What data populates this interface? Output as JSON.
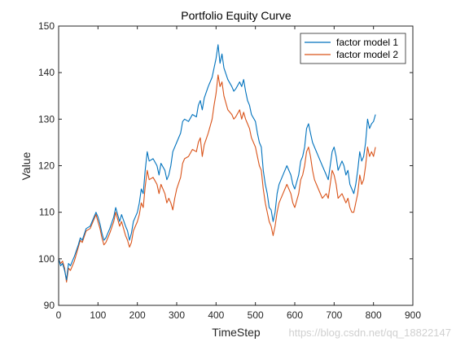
{
  "chart_data": {
    "type": "line",
    "title": "Portfolio Equity Curve",
    "xlabel": "TimeStep",
    "ylabel": "Value",
    "xlim": [
      0,
      900
    ],
    "ylim": [
      90,
      150
    ],
    "xticks": [
      0,
      100,
      200,
      300,
      400,
      500,
      600,
      700,
      800,
      900
    ],
    "yticks": [
      90,
      100,
      110,
      120,
      130,
      140,
      150
    ],
    "grid": false,
    "legend_position": "top-right",
    "series": [
      {
        "name": "factor model 1",
        "color": "#0072bd",
        "points": [
          [
            0,
            100
          ],
          [
            5,
            98.5
          ],
          [
            10,
            99
          ],
          [
            15,
            97.5
          ],
          [
            20,
            95.5
          ],
          [
            25,
            99
          ],
          [
            30,
            98.5
          ],
          [
            40,
            100.5
          ],
          [
            50,
            103
          ],
          [
            55,
            104.5
          ],
          [
            60,
            104
          ],
          [
            70,
            106.5
          ],
          [
            80,
            107
          ],
          [
            90,
            109
          ],
          [
            95,
            110
          ],
          [
            100,
            109
          ],
          [
            105,
            107.5
          ],
          [
            110,
            105.5
          ],
          [
            115,
            104
          ],
          [
            120,
            104.5
          ],
          [
            130,
            106.5
          ],
          [
            140,
            109
          ],
          [
            145,
            111
          ],
          [
            150,
            109.5
          ],
          [
            155,
            108
          ],
          [
            160,
            109.5
          ],
          [
            170,
            107
          ],
          [
            175,
            106
          ],
          [
            180,
            104
          ],
          [
            185,
            105.5
          ],
          [
            190,
            108
          ],
          [
            200,
            110
          ],
          [
            205,
            112
          ],
          [
            210,
            115
          ],
          [
            215,
            114
          ],
          [
            220,
            119
          ],
          [
            225,
            123
          ],
          [
            230,
            121
          ],
          [
            240,
            121.5
          ],
          [
            250,
            120
          ],
          [
            255,
            118
          ],
          [
            260,
            120.5
          ],
          [
            270,
            119
          ],
          [
            275,
            117
          ],
          [
            280,
            118
          ],
          [
            285,
            120
          ],
          [
            290,
            123
          ],
          [
            300,
            125
          ],
          [
            310,
            127
          ],
          [
            315,
            129.5
          ],
          [
            320,
            130
          ],
          [
            330,
            129.5
          ],
          [
            340,
            131
          ],
          [
            350,
            130.5
          ],
          [
            355,
            133
          ],
          [
            360,
            134
          ],
          [
            365,
            132
          ],
          [
            370,
            134.5
          ],
          [
            380,
            137
          ],
          [
            390,
            139
          ],
          [
            395,
            141
          ],
          [
            400,
            143
          ],
          [
            405,
            146
          ],
          [
            410,
            142
          ],
          [
            415,
            144
          ],
          [
            420,
            141
          ],
          [
            430,
            138.5
          ],
          [
            440,
            137
          ],
          [
            445,
            136
          ],
          [
            450,
            136.5
          ],
          [
            460,
            138
          ],
          [
            465,
            137
          ],
          [
            470,
            138.5
          ],
          [
            475,
            136
          ],
          [
            480,
            134
          ],
          [
            485,
            133
          ],
          [
            490,
            131
          ],
          [
            500,
            129.5
          ],
          [
            505,
            127
          ],
          [
            510,
            125
          ],
          [
            515,
            124
          ],
          [
            520,
            119
          ],
          [
            525,
            116
          ],
          [
            530,
            114
          ],
          [
            535,
            111
          ],
          [
            540,
            110.5
          ],
          [
            545,
            108
          ],
          [
            550,
            110
          ],
          [
            555,
            114
          ],
          [
            560,
            116
          ],
          [
            570,
            118
          ],
          [
            575,
            119
          ],
          [
            580,
            120
          ],
          [
            590,
            118
          ],
          [
            595,
            116
          ],
          [
            600,
            115
          ],
          [
            610,
            118
          ],
          [
            615,
            121
          ],
          [
            620,
            122
          ],
          [
            625,
            124
          ],
          [
            630,
            128
          ],
          [
            635,
            129
          ],
          [
            640,
            127
          ],
          [
            645,
            125
          ],
          [
            650,
            124
          ],
          [
            660,
            122
          ],
          [
            670,
            120
          ],
          [
            680,
            118
          ],
          [
            685,
            117
          ],
          [
            690,
            120
          ],
          [
            695,
            123
          ],
          [
            700,
            124
          ],
          [
            705,
            122
          ],
          [
            710,
            119
          ],
          [
            720,
            121
          ],
          [
            725,
            120
          ],
          [
            730,
            118
          ],
          [
            735,
            119
          ],
          [
            740,
            116
          ],
          [
            745,
            115
          ],
          [
            750,
            114
          ],
          [
            755,
            116
          ],
          [
            760,
            119
          ],
          [
            765,
            123
          ],
          [
            770,
            121
          ],
          [
            775,
            122
          ],
          [
            780,
            125
          ],
          [
            785,
            130
          ],
          [
            790,
            128
          ],
          [
            795,
            129
          ],
          [
            800,
            129.5
          ],
          [
            805,
            131
          ]
        ]
      },
      {
        "name": "factor model 2",
        "color": "#d95319",
        "points": [
          [
            0,
            100
          ],
          [
            5,
            99
          ],
          [
            10,
            99.5
          ],
          [
            15,
            98
          ],
          [
            20,
            95
          ],
          [
            25,
            98
          ],
          [
            30,
            97.5
          ],
          [
            40,
            99.5
          ],
          [
            50,
            102.5
          ],
          [
            55,
            104
          ],
          [
            60,
            103.5
          ],
          [
            70,
            106
          ],
          [
            80,
            106.5
          ],
          [
            90,
            108.5
          ],
          [
            95,
            109.5
          ],
          [
            100,
            108
          ],
          [
            105,
            106.5
          ],
          [
            110,
            104.5
          ],
          [
            115,
            103
          ],
          [
            120,
            103.5
          ],
          [
            130,
            105.5
          ],
          [
            140,
            108
          ],
          [
            145,
            110
          ],
          [
            150,
            108.5
          ],
          [
            155,
            107
          ],
          [
            160,
            108
          ],
          [
            170,
            105
          ],
          [
            175,
            104
          ],
          [
            180,
            102.5
          ],
          [
            185,
            103.5
          ],
          [
            190,
            106
          ],
          [
            200,
            108
          ],
          [
            205,
            109.5
          ],
          [
            210,
            112
          ],
          [
            215,
            111
          ],
          [
            220,
            115.5
          ],
          [
            225,
            119
          ],
          [
            230,
            117
          ],
          [
            240,
            117.5
          ],
          [
            250,
            116
          ],
          [
            255,
            114
          ],
          [
            260,
            116
          ],
          [
            270,
            114
          ],
          [
            275,
            112
          ],
          [
            280,
            113
          ],
          [
            285,
            112
          ],
          [
            290,
            110.5
          ],
          [
            295,
            113
          ],
          [
            300,
            115
          ],
          [
            310,
            117.5
          ],
          [
            315,
            120.5
          ],
          [
            320,
            121.5
          ],
          [
            330,
            122
          ],
          [
            340,
            123.5
          ],
          [
            350,
            123
          ],
          [
            355,
            125
          ],
          [
            360,
            126
          ],
          [
            365,
            122
          ],
          [
            370,
            124.5
          ],
          [
            380,
            127
          ],
          [
            390,
            130
          ],
          [
            395,
            133
          ],
          [
            400,
            135.5
          ],
          [
            405,
            139.5
          ],
          [
            410,
            137
          ],
          [
            415,
            138
          ],
          [
            420,
            135
          ],
          [
            430,
            132
          ],
          [
            440,
            131
          ],
          [
            445,
            130
          ],
          [
            450,
            130.5
          ],
          [
            460,
            132
          ],
          [
            465,
            130
          ],
          [
            470,
            131.5
          ],
          [
            475,
            130
          ],
          [
            480,
            129
          ],
          [
            485,
            128
          ],
          [
            490,
            126
          ],
          [
            500,
            124
          ],
          [
            505,
            122
          ],
          [
            510,
            120
          ],
          [
            515,
            119
          ],
          [
            520,
            115
          ],
          [
            525,
            112
          ],
          [
            530,
            110
          ],
          [
            535,
            108
          ],
          [
            540,
            107
          ],
          [
            545,
            105
          ],
          [
            550,
            107
          ],
          [
            555,
            110
          ],
          [
            560,
            112
          ],
          [
            570,
            114
          ],
          [
            575,
            115
          ],
          [
            580,
            116
          ],
          [
            590,
            114
          ],
          [
            595,
            112
          ],
          [
            600,
            111
          ],
          [
            610,
            114
          ],
          [
            615,
            117
          ],
          [
            620,
            118
          ],
          [
            625,
            120
          ],
          [
            630,
            123
          ],
          [
            635,
            124
          ],
          [
            640,
            122
          ],
          [
            645,
            119
          ],
          [
            650,
            117
          ],
          [
            660,
            115
          ],
          [
            670,
            113
          ],
          [
            680,
            114
          ],
          [
            685,
            113
          ],
          [
            690,
            116
          ],
          [
            695,
            119
          ],
          [
            700,
            118
          ],
          [
            705,
            116
          ],
          [
            710,
            113
          ],
          [
            720,
            114
          ],
          [
            725,
            113
          ],
          [
            730,
            112
          ],
          [
            735,
            113
          ],
          [
            740,
            111
          ],
          [
            745,
            110
          ],
          [
            750,
            110
          ],
          [
            755,
            112
          ],
          [
            760,
            114
          ],
          [
            765,
            118
          ],
          [
            770,
            116
          ],
          [
            775,
            117
          ],
          [
            780,
            120
          ],
          [
            785,
            124
          ],
          [
            790,
            122
          ],
          [
            795,
            123
          ],
          [
            800,
            122
          ],
          [
            805,
            124
          ]
        ]
      }
    ]
  },
  "watermark": "https://blog.csdn.net/qq_18822147"
}
